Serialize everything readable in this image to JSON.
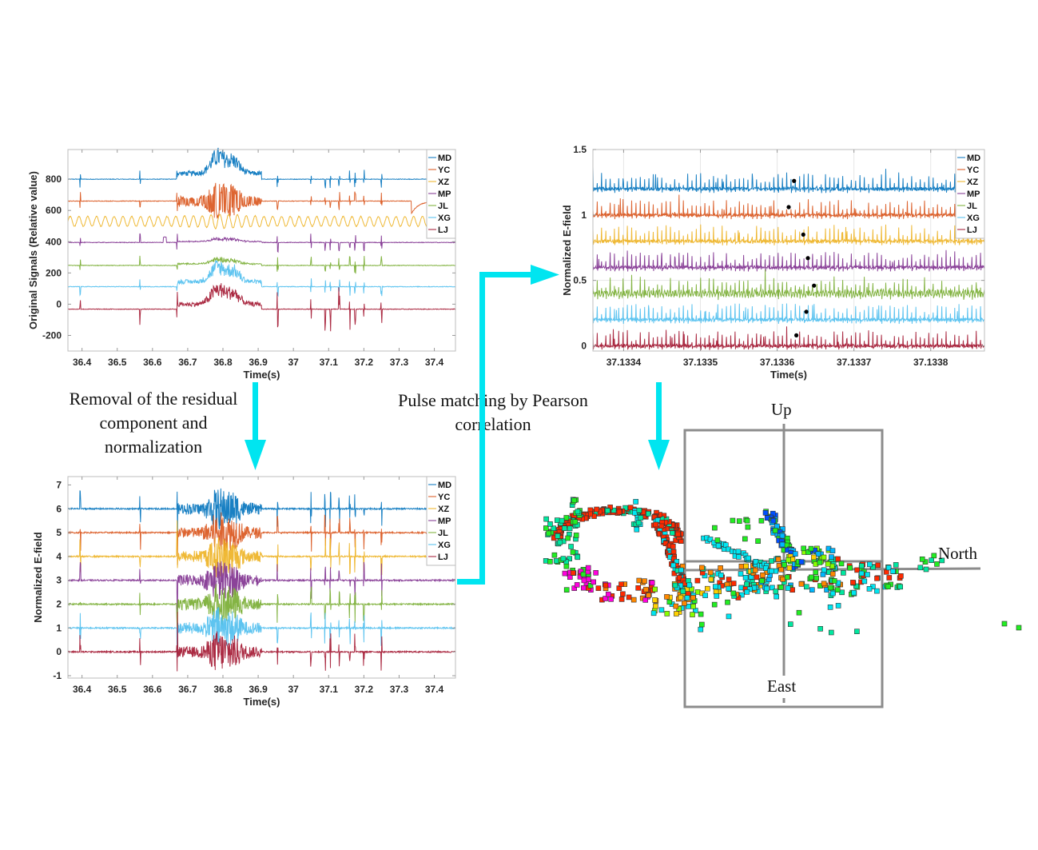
{
  "colors": {
    "MD": "#0072BD",
    "YC": "#D95319",
    "XZ": "#EDB120",
    "MP": "#7E2F8E",
    "JL": "#77AC30",
    "XG": "#4DBEEE",
    "LJ": "#A2142F",
    "arrow": "#00E5F0",
    "frame": "#8c8c8c"
  },
  "captions": {
    "step1": [
      "Removal of the residual",
      "component and",
      "normalization"
    ],
    "step2": [
      "Pulse matching by Pearson",
      "correlation"
    ]
  },
  "map3d": {
    "labels": {
      "up": "Up",
      "north": "North",
      "east": "East"
    }
  },
  "chart_data": [
    {
      "id": "original",
      "type": "line",
      "title": "",
      "xlabel": "Time(s)",
      "ylabel": "Original Signals (Relative value)",
      "xlim": [
        36.36,
        37.46
      ],
      "ylim": [
        -300,
        990
      ],
      "xticks": [
        "36.4",
        "36.5",
        "36.6",
        "36.7",
        "36.8",
        "36.9",
        "37",
        "37.1",
        "37.2",
        "37.3",
        "37.4"
      ],
      "xtick_values": [
        36.4,
        36.5,
        36.6,
        36.7,
        36.8,
        36.9,
        37.0,
        37.1,
        37.2,
        37.3,
        37.4
      ],
      "yticks": [
        "-200",
        "0",
        "200",
        "400",
        "600",
        "800"
      ],
      "ytick_values": [
        -200,
        0,
        200,
        400,
        600,
        800
      ],
      "legend": [
        "MD",
        "YC",
        "XZ",
        "MP",
        "JL",
        "XG",
        "LJ"
      ],
      "legend_position": "top-right",
      "grid": false,
      "series": [
        {
          "name": "MD",
          "baseline": 800,
          "burst_amp": 150
        },
        {
          "name": "YC",
          "baseline": 660,
          "burst_amp": 90
        },
        {
          "name": "XZ",
          "baseline": 530,
          "oscillation_amp": 35
        },
        {
          "name": "MP",
          "baseline": 395,
          "burst_amp": 25
        },
        {
          "name": "JL",
          "baseline": 248,
          "burst_amp": 40
        },
        {
          "name": "XG",
          "baseline": 112,
          "burst_amp": 130
        },
        {
          "name": "LJ",
          "baseline": -32,
          "burst_amp": 130
        }
      ]
    },
    {
      "id": "normalized",
      "type": "line",
      "title": "",
      "xlabel": "Time(s)",
      "ylabel": "Normalized E-field",
      "xlim": [
        36.36,
        37.46
      ],
      "ylim": [
        -1.1,
        7.35
      ],
      "xticks": [
        "36.4",
        "36.5",
        "36.6",
        "36.7",
        "36.8",
        "36.9",
        "37",
        "37.1",
        "37.2",
        "37.3",
        "37.4"
      ],
      "xtick_values": [
        36.4,
        36.5,
        36.6,
        36.7,
        36.8,
        36.9,
        37.0,
        37.1,
        37.2,
        37.3,
        37.4
      ],
      "yticks": [
        "-1",
        "0",
        "1",
        "2",
        "3",
        "4",
        "5",
        "6",
        "7"
      ],
      "ytick_values": [
        -1,
        0,
        1,
        2,
        3,
        4,
        5,
        6,
        7
      ],
      "legend": [
        "MD",
        "YC",
        "XZ",
        "MP",
        "JL",
        "XG",
        "LJ"
      ],
      "legend_position": "top-right",
      "grid": false,
      "series": [
        {
          "name": "MD",
          "baseline": 6
        },
        {
          "name": "YC",
          "baseline": 5
        },
        {
          "name": "XZ",
          "baseline": 4
        },
        {
          "name": "MP",
          "baseline": 3
        },
        {
          "name": "JL",
          "baseline": 2
        },
        {
          "name": "XG",
          "baseline": 1
        },
        {
          "name": "LJ",
          "baseline": 0
        }
      ]
    },
    {
      "id": "matched",
      "type": "line",
      "title": "",
      "xlabel": "Time(s)",
      "ylabel": "Normalized E-field",
      "xlim": [
        37.13336,
        37.13387
      ],
      "ylim": [
        -0.04,
        1.5
      ],
      "xticks": [
        "37.1334",
        "37.1335",
        "37.1336",
        "37.1337",
        "37.1338"
      ],
      "xtick_values": [
        37.1334,
        37.1335,
        37.1336,
        37.1337,
        37.1338
      ],
      "yticks": [
        "0",
        "0.5",
        "1",
        "1.5"
      ],
      "ytick_values": [
        0,
        0.5,
        1,
        1.5
      ],
      "legend": [
        "MD",
        "YC",
        "XZ",
        "MP",
        "JL",
        "XG",
        "LJ"
      ],
      "legend_position": "top-right",
      "grid": true,
      "series": [
        {
          "name": "MD",
          "baseline": 1.2,
          "marker": {
            "x": 37.133622,
            "y": 1.26
          }
        },
        {
          "name": "YC",
          "baseline": 1.0,
          "marker": {
            "x": 37.133615,
            "y": 1.06
          }
        },
        {
          "name": "XZ",
          "baseline": 0.8,
          "marker": {
            "x": 37.133634,
            "y": 0.85
          }
        },
        {
          "name": "MP",
          "baseline": 0.6,
          "marker": {
            "x": 37.13364,
            "y": 0.67
          }
        },
        {
          "name": "JL",
          "baseline": 0.4,
          "marker": {
            "x": 37.133648,
            "y": 0.46
          }
        },
        {
          "name": "XG",
          "baseline": 0.2,
          "marker": {
            "x": 37.133638,
            "y": 0.26
          }
        },
        {
          "name": "LJ",
          "baseline": 0.0,
          "marker": {
            "x": 37.133625,
            "y": 0.08
          }
        }
      ]
    }
  ]
}
